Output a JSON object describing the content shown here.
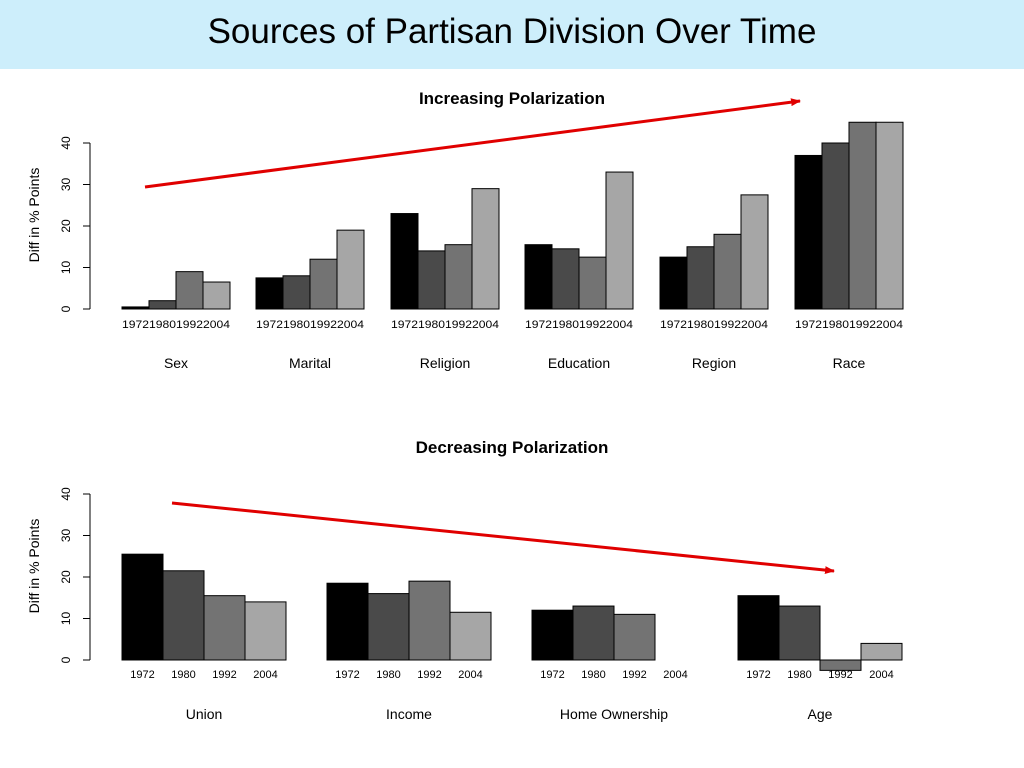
{
  "slide": {
    "title": "Sources of Partisan Division Over Time"
  },
  "chart_data": [
    {
      "type": "bar",
      "title": "Increasing Polarization",
      "ylabel": "Diff in % Points",
      "ylim": [
        0,
        40
      ],
      "yticks": [
        0,
        10,
        20,
        30,
        40
      ],
      "series_names": [
        "1972",
        "1980",
        "1992",
        "2004"
      ],
      "bar_colors": [
        "#000000",
        "#4a4a4a",
        "#737373",
        "#a6a6a6"
      ],
      "groups": [
        {
          "label": "Sex",
          "years": [
            "1972",
            "1980",
            "1992",
            "2004"
          ],
          "values": [
            0.5,
            2,
            9,
            6.5
          ]
        },
        {
          "label": "Marital",
          "years": [
            "1972",
            "1980",
            "1992",
            "2004"
          ],
          "values": [
            7.5,
            8,
            12,
            19
          ]
        },
        {
          "label": "Religion",
          "years": [
            "1972",
            "1980",
            "1992",
            "2004"
          ],
          "values": [
            23,
            14,
            15.5,
            29
          ]
        },
        {
          "label": "Education",
          "years": [
            "1972",
            "1980",
            "1992",
            "2004"
          ],
          "values": [
            15.5,
            14.5,
            12.5,
            33
          ]
        },
        {
          "label": "Region",
          "years": [
            "1972",
            "1980",
            "1992",
            "2004"
          ],
          "values": [
            12.5,
            15,
            18,
            27.5
          ]
        },
        {
          "label": "Race",
          "years": [
            "1972",
            "1980",
            "1992",
            "2004"
          ],
          "values": [
            37,
            40,
            45,
            45
          ]
        }
      ],
      "trend_arrow": {
        "direction": "increasing",
        "color": "#e00000"
      }
    },
    {
      "type": "bar",
      "title": "Decreasing Polarization",
      "ylabel": "Diff in % Points",
      "ylim": [
        0,
        40
      ],
      "yticks": [
        0,
        10,
        20,
        30,
        40
      ],
      "series_names": [
        "1972",
        "1980",
        "1992",
        "2004"
      ],
      "bar_colors": [
        "#000000",
        "#4a4a4a",
        "#737373",
        "#a6a6a6"
      ],
      "groups": [
        {
          "label": "Union",
          "years": [
            "1972",
            "1980",
            "1992",
            "2004"
          ],
          "values": [
            25.5,
            21.5,
            15.5,
            14
          ]
        },
        {
          "label": "Income",
          "years": [
            "1972",
            "1980",
            "1992",
            "2004"
          ],
          "values": [
            18.5,
            16,
            19,
            11.5
          ]
        },
        {
          "label": "Home Ownership",
          "years": [
            "1972",
            "1980",
            "1992",
            "2004"
          ],
          "values": [
            12,
            13,
            11,
            0
          ]
        },
        {
          "label": "Age",
          "years": [
            "1972",
            "1980",
            "1992",
            "2004"
          ],
          "values": [
            15.5,
            13,
            -2.5,
            4
          ]
        }
      ],
      "trend_arrow": {
        "direction": "decreasing",
        "color": "#e00000"
      }
    }
  ]
}
